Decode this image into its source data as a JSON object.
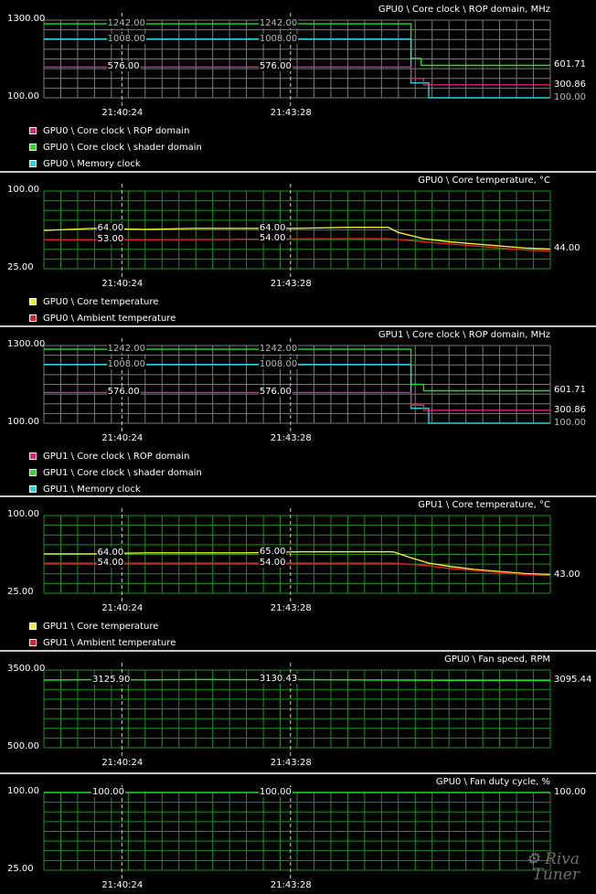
{
  "panels": [
    {
      "title": "GPU0 \\ Core clock \\ ROP domain, MHz",
      "y_top": "1300.00",
      "y_bottom": "100.00",
      "ymin": 100,
      "ymax": 1300,
      "x_ticks": [
        "21:40:24",
        "21:43:28"
      ],
      "legend": [
        {
          "label": "GPU0 \\ Core clock \\ ROP domain",
          "color": "#e0207a"
        },
        {
          "label": "GPU0 \\ Core clock \\ shader domain",
          "color": "#22dd22"
        },
        {
          "label": "GPU0 \\ Memory clock",
          "color": "#30d0e0"
        }
      ],
      "series": [
        {
          "name": "GPU0 \\ Core clock \\ shader domain",
          "color": "#22dd22",
          "points": [
            [
              0,
              1242
            ],
            [
              0.725,
              1242
            ],
            [
              0.725,
              710
            ],
            [
              0.745,
              710
            ],
            [
              0.745,
              601.71
            ],
            [
              1,
              601.71
            ]
          ]
        },
        {
          "name": "GPU0 \\ Memory clock",
          "color": "#30d0e0",
          "points": [
            [
              0,
              1008
            ],
            [
              0.725,
              1008
            ],
            [
              0.725,
              330
            ],
            [
              0.76,
              330
            ],
            [
              0.76,
              100
            ],
            [
              1,
              100
            ]
          ]
        },
        {
          "name": "GPU0 \\ Core clock \\ ROP domain",
          "color": "#e0207a",
          "points": [
            [
              0,
              576
            ],
            [
              0.725,
              576
            ],
            [
              0.725,
              400
            ],
            [
              0.75,
              400
            ],
            [
              0.75,
              300.86
            ],
            [
              1,
              300.86
            ]
          ]
        }
      ],
      "point_labels": [
        {
          "text": "1242.00",
          "x": 0.16,
          "y": 1242
        },
        {
          "text": "1008.00",
          "x": 0.16,
          "y": 1008
        },
        {
          "text": "576.00",
          "x": 0.16,
          "y": 576
        },
        {
          "text": "1242.00",
          "x": 0.46,
          "y": 1242
        },
        {
          "text": "1008.00",
          "x": 0.46,
          "y": 1008
        },
        {
          "text": "576.00",
          "x": 0.46,
          "y": 576
        }
      ],
      "right_labels": [
        {
          "text": "601.71",
          "y": 601.71
        },
        {
          "text": "300.86",
          "y": 300.86
        },
        {
          "text": "100.00",
          "y": 100
        }
      ]
    },
    {
      "title": "GPU0 \\ Core temperature, °C",
      "y_top": "100.00",
      "y_bottom": "25.00",
      "ymin": 25,
      "ymax": 100,
      "x_ticks": [
        "21:40:24",
        "21:43:28"
      ],
      "legend": [
        {
          "label": "GPU0 \\ Core temperature",
          "color": "#eeee30"
        },
        {
          "label": "GPU0 \\ Ambient temperature",
          "color": "#e02020"
        }
      ],
      "series": [
        {
          "name": "GPU0 \\ Core temperature",
          "color": "#eeee30",
          "points": [
            [
              0,
              62
            ],
            [
              0.05,
              63
            ],
            [
              0.1,
              64
            ],
            [
              0.2,
              63
            ],
            [
              0.3,
              64
            ],
            [
              0.4,
              64
            ],
            [
              0.5,
              64
            ],
            [
              0.6,
              65
            ],
            [
              0.68,
              65
            ],
            [
              0.7,
              60
            ],
            [
              0.75,
              54
            ],
            [
              0.8,
              51
            ],
            [
              0.85,
              49
            ],
            [
              0.9,
              47
            ],
            [
              0.95,
              45
            ],
            [
              1,
              44
            ]
          ]
        },
        {
          "name": "GPU0 \\ Ambient temperature",
          "color": "#e02020",
          "points": [
            [
              0,
              53
            ],
            [
              0.2,
              53
            ],
            [
              0.4,
              53.5
            ],
            [
              0.6,
              54
            ],
            [
              0.68,
              54
            ],
            [
              0.75,
              51
            ],
            [
              0.8,
              49
            ],
            [
              0.85,
              47
            ],
            [
              0.9,
              45
            ],
            [
              0.95,
              43
            ],
            [
              1,
              42
            ]
          ]
        }
      ],
      "point_labels": [
        {
          "text": "64.00",
          "x": 0.14,
          "y": 64
        },
        {
          "text": "53.00",
          "x": 0.14,
          "y": 53
        },
        {
          "text": "64.00",
          "x": 0.46,
          "y": 64
        },
        {
          "text": "54.00",
          "x": 0.46,
          "y": 54
        }
      ],
      "right_labels": [
        {
          "text": "44.00",
          "y": 44
        }
      ]
    },
    {
      "title": "GPU1 \\ Core clock \\ ROP domain, MHz",
      "y_top": "1300.00",
      "y_bottom": "100.00",
      "ymin": 100,
      "ymax": 1300,
      "x_ticks": [
        "21:40:24",
        "21:43:28"
      ],
      "legend": [
        {
          "label": "GPU1 \\ Core clock \\ ROP domain",
          "color": "#e0207a"
        },
        {
          "label": "GPU1 \\ Core clock \\ shader domain",
          "color": "#22dd22"
        },
        {
          "label": "GPU1 \\ Memory clock",
          "color": "#30d0e0"
        }
      ],
      "series": [
        {
          "name": "GPU1 \\ Core clock \\ shader domain",
          "color": "#22dd22",
          "points": [
            [
              0,
              1242
            ],
            [
              0.725,
              1242
            ],
            [
              0.725,
              700
            ],
            [
              0.75,
              700
            ],
            [
              0.75,
              601.71
            ],
            [
              1,
              601.71
            ]
          ]
        },
        {
          "name": "GPU1 \\ Memory clock",
          "color": "#30d0e0",
          "points": [
            [
              0,
              1008
            ],
            [
              0.725,
              1008
            ],
            [
              0.725,
              330
            ],
            [
              0.76,
              330
            ],
            [
              0.76,
              100
            ],
            [
              1,
              100
            ]
          ]
        },
        {
          "name": "GPU1 \\ Core clock \\ ROP domain",
          "color": "#e0207a",
          "points": [
            [
              0,
              576
            ],
            [
              0.725,
              576
            ],
            [
              0.725,
              380
            ],
            [
              0.75,
              380
            ],
            [
              0.75,
              300.86
            ],
            [
              1,
              300.86
            ]
          ]
        }
      ],
      "point_labels": [
        {
          "text": "1242.00",
          "x": 0.16,
          "y": 1242
        },
        {
          "text": "1008.00",
          "x": 0.16,
          "y": 1008
        },
        {
          "text": "576.00",
          "x": 0.16,
          "y": 576
        },
        {
          "text": "1242.00",
          "x": 0.46,
          "y": 1242
        },
        {
          "text": "1008.00",
          "x": 0.46,
          "y": 1008
        },
        {
          "text": "576.00",
          "x": 0.46,
          "y": 576
        }
      ],
      "right_labels": [
        {
          "text": "601.71",
          "y": 601.71
        },
        {
          "text": "300.86",
          "y": 300.86
        },
        {
          "text": "100.00",
          "y": 100
        }
      ]
    },
    {
      "title": "GPU1 \\ Core temperature, °C",
      "y_top": "100.00",
      "y_bottom": "25.00",
      "ymin": 25,
      "ymax": 100,
      "x_ticks": [
        "21:40:24",
        "21:43:28"
      ],
      "legend": [
        {
          "label": "GPU1 \\ Core temperature",
          "color": "#eeee30"
        },
        {
          "label": "GPU1 \\ Ambient temperature",
          "color": "#e02020"
        }
      ],
      "series": [
        {
          "name": "GPU1 \\ Core temperature",
          "color": "#eeee30",
          "points": [
            [
              0,
              63
            ],
            [
              0.1,
              63
            ],
            [
              0.2,
              64
            ],
            [
              0.3,
              64
            ],
            [
              0.4,
              64
            ],
            [
              0.5,
              65
            ],
            [
              0.6,
              65
            ],
            [
              0.69,
              65
            ],
            [
              0.72,
              60
            ],
            [
              0.76,
              54
            ],
            [
              0.8,
              51
            ],
            [
              0.85,
              48
            ],
            [
              0.9,
              46
            ],
            [
              0.95,
              44
            ],
            [
              1,
              43
            ]
          ]
        },
        {
          "name": "GPU1 \\ Ambient temperature",
          "color": "#e02020",
          "points": [
            [
              0,
              54
            ],
            [
              0.3,
              54
            ],
            [
              0.5,
              54
            ],
            [
              0.69,
              54
            ],
            [
              0.75,
              52
            ],
            [
              0.8,
              49
            ],
            [
              0.85,
              47
            ],
            [
              0.9,
              45
            ],
            [
              0.95,
              43
            ],
            [
              1,
              42
            ]
          ]
        }
      ],
      "point_labels": [
        {
          "text": "64.00",
          "x": 0.14,
          "y": 64
        },
        {
          "text": "54.00",
          "x": 0.14,
          "y": 54
        },
        {
          "text": "65.00",
          "x": 0.46,
          "y": 65
        },
        {
          "text": "54.00",
          "x": 0.46,
          "y": 54
        }
      ],
      "right_labels": [
        {
          "text": "43.00",
          "y": 43
        }
      ]
    },
    {
      "title": "GPU0 \\ Fan speed, RPM",
      "y_top": "3500.00",
      "y_bottom": "500.00",
      "ymin": 500,
      "ymax": 3500,
      "x_ticks": [
        "21:40:24",
        "21:43:28"
      ],
      "legend": [],
      "series": [
        {
          "name": "GPU0 \\ Fan speed",
          "color": "#22dd22",
          "points": [
            [
              0,
              3110
            ],
            [
              0.1,
              3130
            ],
            [
              0.2,
              3120
            ],
            [
              0.3,
              3135
            ],
            [
              0.4,
              3125
            ],
            [
              0.5,
              3130
            ],
            [
              0.6,
              3120
            ],
            [
              0.7,
              3110
            ],
            [
              0.8,
              3100
            ],
            [
              0.9,
              3100
            ],
            [
              1,
              3095
            ]
          ]
        }
      ],
      "point_labels": [
        {
          "text": "3125.90",
          "x": 0.13,
          "y": 3125.9
        },
        {
          "text": "3130.43",
          "x": 0.46,
          "y": 3130.43
        }
      ],
      "right_labels": [
        {
          "text": "3095.44",
          "y": 3095.44
        }
      ]
    },
    {
      "title": "GPU0 \\ Fan duty cycle, %",
      "y_top": "100.00",
      "y_bottom": "25.00",
      "ymin": 25,
      "ymax": 100,
      "x_ticks": [
        "21:40:24",
        "21:43:28"
      ],
      "legend": [],
      "series": [
        {
          "name": "GPU0 \\ Fan duty cycle",
          "color": "#22dd22",
          "points": [
            [
              0,
              100
            ],
            [
              1,
              100
            ]
          ]
        }
      ],
      "point_labels": [
        {
          "text": "100.00",
          "x": 0.13,
          "y": 100
        },
        {
          "text": "100.00",
          "x": 0.46,
          "y": 100
        }
      ],
      "right_labels": [
        {
          "text": "100.00",
          "y": 100
        }
      ]
    }
  ],
  "logo_text": "Riva Tuner"
}
